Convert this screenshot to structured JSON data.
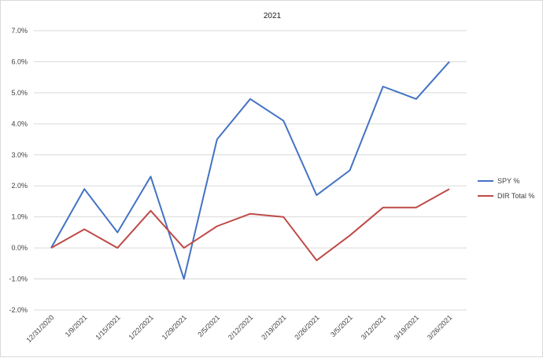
{
  "chart_data": {
    "type": "line",
    "title": "2021",
    "xlabel": "",
    "ylabel": "",
    "ylim": [
      -2.0,
      7.0
    ],
    "y_tick_step": 1.0,
    "y_tick_format": "percent_1dp",
    "grid": true,
    "legend_position": "right",
    "categories": [
      "12/31/2020",
      "1/9/2021",
      "1/15/2021",
      "1/22/2021",
      "1/29/2021",
      "2/5/2021",
      "2/12/2021",
      "2/19/2021",
      "2/26/2021",
      "3/5/2021",
      "3/12/2021",
      "3/19/2021",
      "3/26/2021"
    ],
    "y_tick_labels": [
      "-2.0%",
      "-1.0%",
      "0.0%",
      "1.0%",
      "2.0%",
      "3.0%",
      "4.0%",
      "5.0%",
      "6.0%",
      "7.0%"
    ],
    "series": [
      {
        "name": "SPY %",
        "color": "#4472c4",
        "values": [
          0.0,
          1.9,
          0.5,
          2.3,
          -1.0,
          3.5,
          4.8,
          4.1,
          1.7,
          2.5,
          5.2,
          4.8,
          6.0
        ]
      },
      {
        "name": "DIR Total %",
        "color": "#be4b48",
        "values": [
          0.0,
          0.6,
          0.0,
          1.2,
          0.0,
          0.7,
          1.1,
          1.0,
          -0.4,
          0.4,
          1.3,
          1.3,
          1.9
        ]
      }
    ]
  }
}
